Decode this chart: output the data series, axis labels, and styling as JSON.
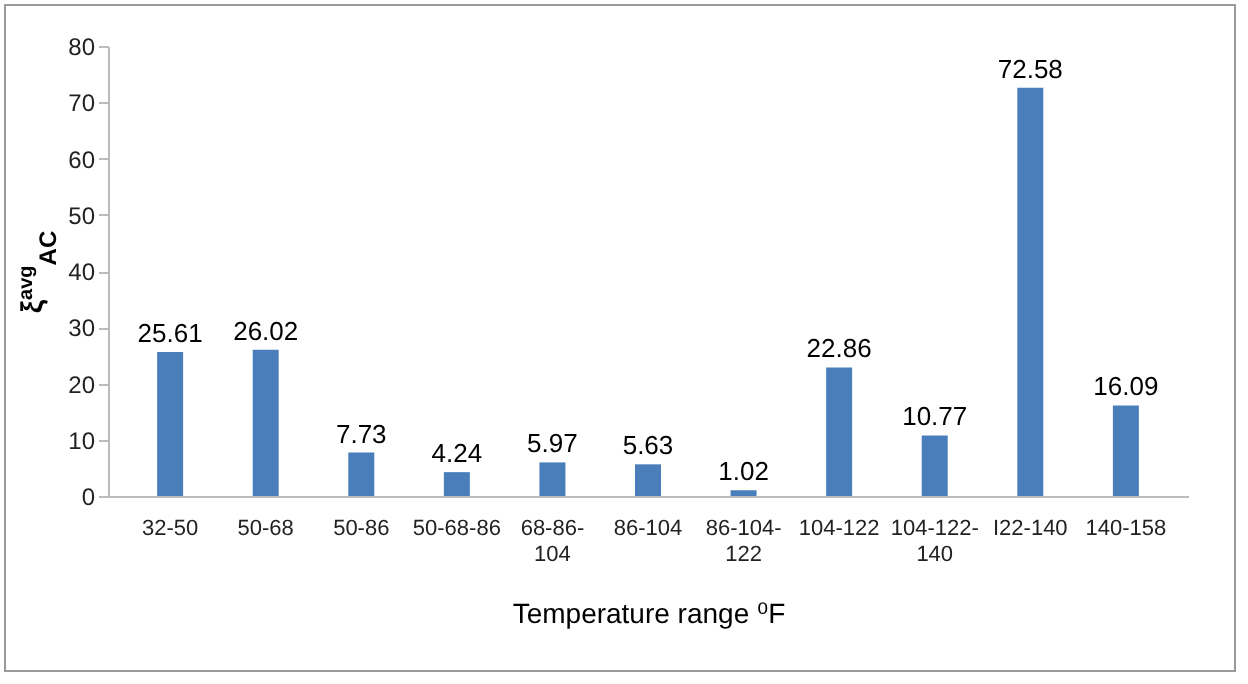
{
  "chart_data": {
    "type": "bar",
    "categories": [
      "32-50",
      "50-68",
      "50-86",
      "50-68-86",
      "68-86-104",
      "86-104",
      "86-104-122",
      "104-122",
      "104-122-140",
      "I22-140",
      "140-158"
    ],
    "values": [
      25.61,
      26.02,
      7.73,
      4.24,
      5.97,
      5.63,
      1.02,
      22.86,
      10.77,
      72.58,
      16.09
    ],
    "color": "#4a7ebb",
    "xlabel": "Temperature range ⁰F",
    "ylabel": "ξ$^{avg}$$_{AC}$",
    "ylim": [
      0,
      80
    ],
    "yticks": [
      0,
      10,
      20,
      30,
      40,
      50,
      60,
      70,
      80
    ],
    "data_labels": true,
    "grid": false
  }
}
